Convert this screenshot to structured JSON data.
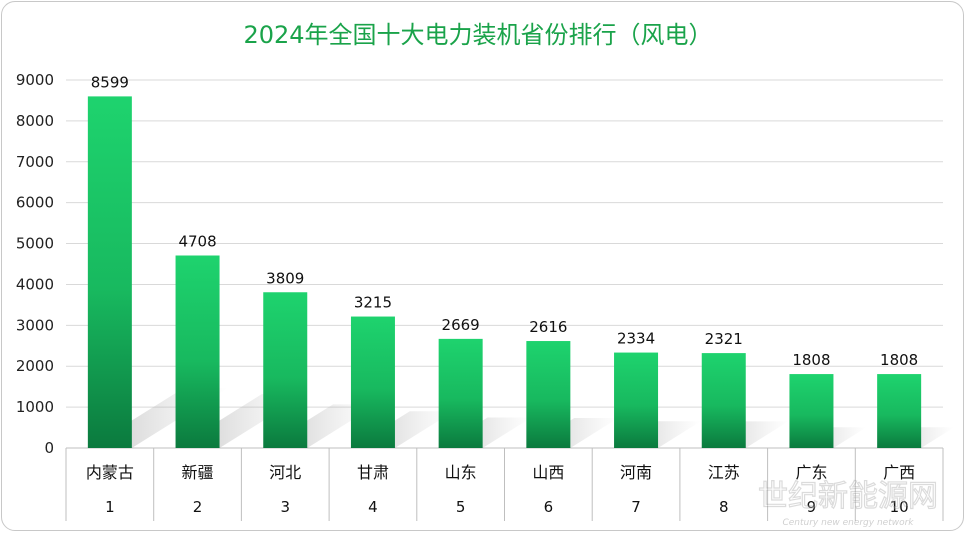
{
  "chart_data": {
    "type": "bar",
    "title": "2024年全国十大电力装机省份排行（风电）",
    "categories": [
      "内蒙古",
      "新疆",
      "河北",
      "甘肃",
      "山东",
      "山西",
      "河南",
      "江苏",
      "广东",
      "广西"
    ],
    "ranks": [
      "1",
      "2",
      "3",
      "4",
      "5",
      "6",
      "7",
      "8",
      "9",
      "10"
    ],
    "values": [
      8599,
      4708,
      3809,
      3215,
      2669,
      2616,
      2334,
      2321,
      1808,
      1808
    ],
    "ylim": [
      0,
      9000
    ],
    "yticks": [
      "0",
      "1000",
      "2000",
      "3000",
      "4000",
      "5000",
      "6000",
      "7000",
      "8000",
      "9000"
    ],
    "grid": true,
    "colors": {
      "bar_top": "#1ed36e",
      "bar_bottom": "#0b7a3e",
      "title": "#1aa34a",
      "grid": "#d9d9d9"
    }
  },
  "watermark": {
    "text": "世纪新能源网",
    "subtext": "Century new energy network"
  }
}
